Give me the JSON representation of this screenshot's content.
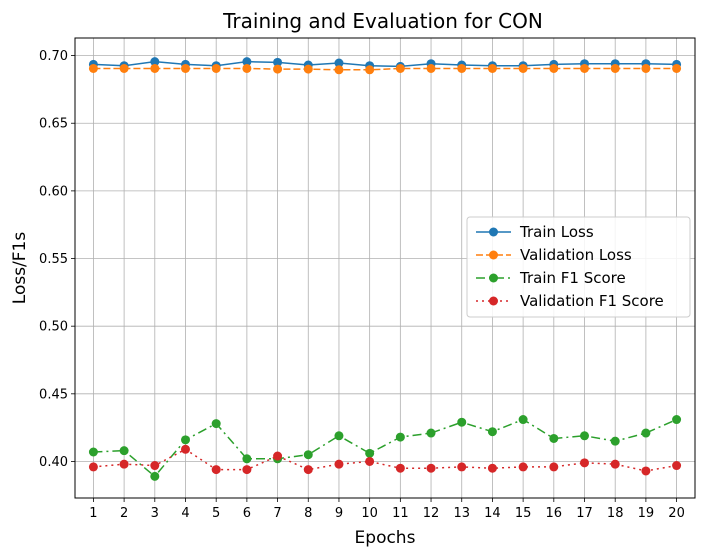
{
  "chart_data": {
    "type": "line",
    "title": "Training and Evaluation for CON",
    "xlabel": "Epochs",
    "ylabel": "Loss/F1s",
    "x": [
      1,
      2,
      3,
      4,
      5,
      6,
      7,
      8,
      9,
      10,
      11,
      12,
      13,
      14,
      15,
      16,
      17,
      18,
      19,
      20
    ],
    "ylim": [
      0.373,
      0.713
    ],
    "yticks": [
      0.4,
      0.45,
      0.5,
      0.55,
      0.6,
      0.65,
      0.7
    ],
    "ytick_labels": [
      "0.40",
      "0.45",
      "0.50",
      "0.55",
      "0.60",
      "0.65",
      "0.70"
    ],
    "grid": true,
    "legend_position": "center-right",
    "series": [
      {
        "name": "Train Loss",
        "color": "#1f77b4",
        "linestyle": "solid",
        "values": [
          0.6935,
          0.6925,
          0.6955,
          0.6935,
          0.6925,
          0.6955,
          0.695,
          0.693,
          0.6945,
          0.6925,
          0.692,
          0.694,
          0.693,
          0.6925,
          0.6925,
          0.6935,
          0.694,
          0.694,
          0.694,
          0.6935
        ]
      },
      {
        "name": "Validation Loss",
        "color": "#ff7f0e",
        "linestyle": "dashed",
        "values": [
          0.6905,
          0.6905,
          0.6905,
          0.6905,
          0.6905,
          0.6905,
          0.69,
          0.69,
          0.6895,
          0.6895,
          0.6905,
          0.6905,
          0.6905,
          0.6905,
          0.6905,
          0.6905,
          0.6905,
          0.6905,
          0.6905,
          0.6905
        ]
      },
      {
        "name": "Train F1 Score",
        "color": "#2ca02c",
        "linestyle": "dashdot",
        "values": [
          0.407,
          0.408,
          0.389,
          0.416,
          0.428,
          0.402,
          0.402,
          0.405,
          0.419,
          0.406,
          0.418,
          0.421,
          0.429,
          0.422,
          0.431,
          0.417,
          0.419,
          0.415,
          0.421,
          0.431
        ]
      },
      {
        "name": "Validation F1 Score",
        "color": "#d62728",
        "linestyle": "dotted",
        "values": [
          0.396,
          0.398,
          0.397,
          0.409,
          0.394,
          0.394,
          0.404,
          0.394,
          0.398,
          0.4,
          0.395,
          0.395,
          0.396,
          0.395,
          0.396,
          0.396,
          0.399,
          0.398,
          0.393,
          0.397
        ]
      }
    ]
  }
}
